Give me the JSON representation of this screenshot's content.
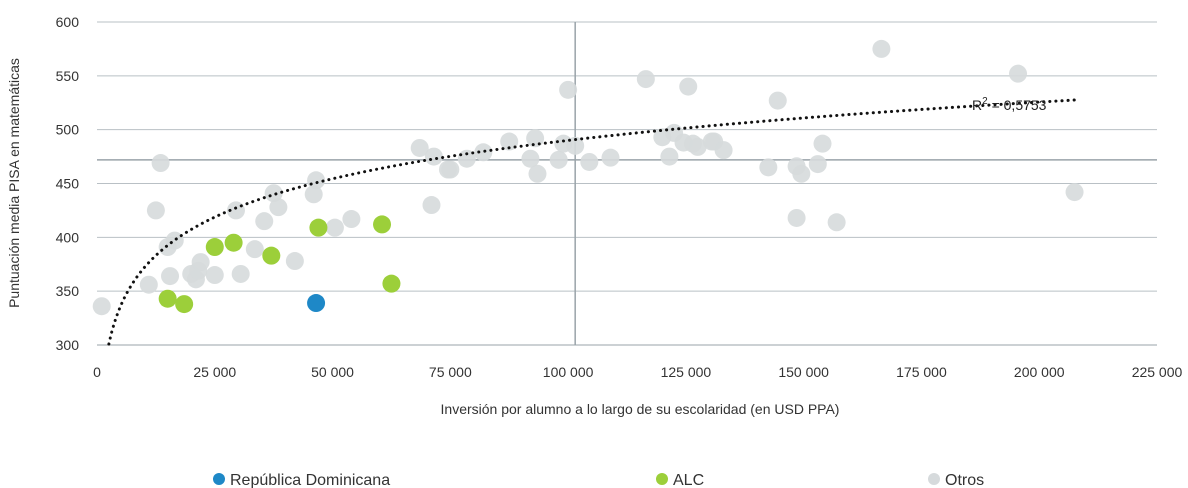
{
  "chart_data": {
    "type": "scatter",
    "xlabel": "Inversión por alumno a lo largo de su escolaridad (en USD PPA)",
    "ylabel": "Puntuación media PISA en matemáticas",
    "xlim": [
      0,
      225000
    ],
    "ylim": [
      300,
      600
    ],
    "x_ticks": [
      0,
      25000,
      50000,
      75000,
      100000,
      125000,
      150000,
      175000,
      200000,
      225000
    ],
    "x_tick_labels": [
      "0",
      "25 000",
      "50 000",
      "75 000",
      "100 000",
      "125 000",
      "150 000",
      "175 000",
      "200 000",
      "225 000"
    ],
    "y_ticks": [
      300,
      350,
      400,
      450,
      500,
      550,
      600
    ],
    "y_tick_labels": [
      "300",
      "350",
      "400",
      "450",
      "500",
      "550",
      "600"
    ],
    "grid": "horizontal",
    "reference_lines": {
      "x": 101500,
      "y": 472
    },
    "trendline": {
      "type": "logarithmic",
      "style": "dotted",
      "color": "#111111",
      "x_range": [
        1800,
        207500
      ],
      "a": -101.51,
      "b": 51.38,
      "label_prefix": "R",
      "label_sup": "2",
      "label_value": " = 0,5753"
    },
    "legend": {
      "placement": "bottom",
      "entries": [
        {
          "name": "República Dominicana",
          "color": "#1e88c7"
        },
        {
          "name": "ALC",
          "color": "#9ccf3a"
        },
        {
          "name": "Otros",
          "color": "#d6dadc"
        }
      ]
    },
    "series": [
      {
        "name": "Otros",
        "color": "#d6dadc",
        "points": [
          [
            1000,
            336
          ],
          [
            11000,
            356
          ],
          [
            12500,
            425
          ],
          [
            13500,
            469
          ],
          [
            15000,
            391
          ],
          [
            15500,
            364
          ],
          [
            16500,
            397
          ],
          [
            20000,
            366
          ],
          [
            21000,
            361
          ],
          [
            21500,
            369
          ],
          [
            22000,
            377
          ],
          [
            25000,
            365
          ],
          [
            29500,
            425
          ],
          [
            30500,
            366
          ],
          [
            33500,
            389
          ],
          [
            35500,
            415
          ],
          [
            37500,
            441
          ],
          [
            38500,
            428
          ],
          [
            42000,
            378
          ],
          [
            46000,
            440
          ],
          [
            46500,
            453
          ],
          [
            50500,
            409
          ],
          [
            54000,
            417
          ],
          [
            68500,
            483
          ],
          [
            71000,
            430
          ],
          [
            71500,
            475
          ],
          [
            74500,
            463
          ],
          [
            75000,
            463
          ],
          [
            78500,
            473
          ],
          [
            82000,
            479
          ],
          [
            87500,
            489
          ],
          [
            92000,
            473
          ],
          [
            93000,
            492
          ],
          [
            93500,
            459
          ],
          [
            98000,
            472
          ],
          [
            99000,
            487
          ],
          [
            100000,
            537
          ],
          [
            101500,
            485
          ],
          [
            104500,
            470
          ],
          [
            109000,
            474
          ],
          [
            116500,
            547
          ],
          [
            120000,
            493
          ],
          [
            121500,
            475
          ],
          [
            122500,
            497
          ],
          [
            124500,
            488
          ],
          [
            125500,
            540
          ],
          [
            126500,
            487
          ],
          [
            127500,
            484
          ],
          [
            130500,
            489
          ],
          [
            131000,
            489
          ],
          [
            133000,
            481
          ],
          [
            142500,
            465
          ],
          [
            144500,
            527
          ],
          [
            148500,
            418
          ],
          [
            148500,
            466
          ],
          [
            149500,
            459
          ],
          [
            153000,
            468
          ],
          [
            154000,
            487
          ],
          [
            157000,
            414
          ],
          [
            166500,
            575
          ],
          [
            195500,
            552
          ],
          [
            207500,
            442
          ]
        ]
      },
      {
        "name": "ALC",
        "color": "#9ccf3a",
        "points": [
          [
            15000,
            343
          ],
          [
            18500,
            338
          ],
          [
            25000,
            391
          ],
          [
            29000,
            395
          ],
          [
            37000,
            383
          ],
          [
            47000,
            409
          ],
          [
            60500,
            412
          ],
          [
            62500,
            357
          ]
        ]
      },
      {
        "name": "República Dominicana",
        "color": "#1e88c7",
        "points": [
          [
            46500,
            339
          ]
        ]
      }
    ]
  }
}
